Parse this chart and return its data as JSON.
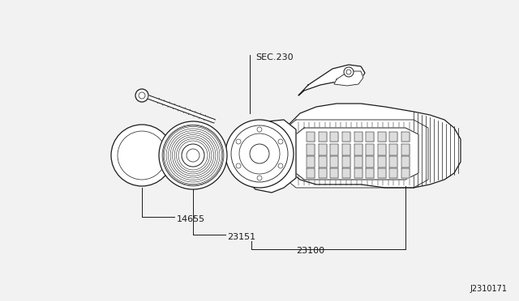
{
  "bg_color": "#ffffff",
  "line_color": "#1a1a1a",
  "text_color": "#1a1a1a",
  "diagram_id": "J2310171",
  "font_size_parts": 7,
  "font_size_id": 7,
  "image_bg": "#f2f2f2"
}
